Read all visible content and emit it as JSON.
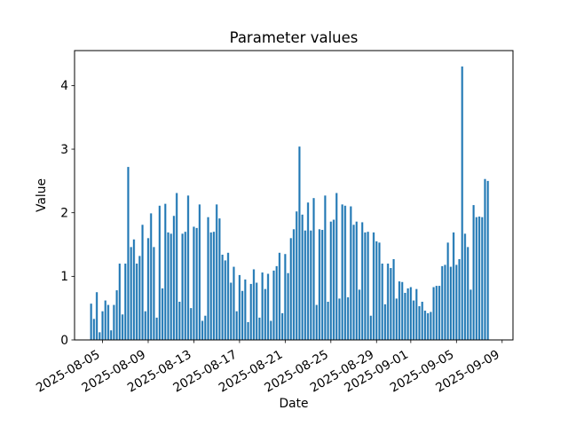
{
  "chart_data": {
    "type": "bar",
    "title": "Parameter values",
    "xlabel": "Date",
    "ylabel": "Value",
    "bar_color": "#1f77b4",
    "axis_color": "#000000",
    "background_color": "#ffffff",
    "grid": false,
    "legend": null,
    "start_date": "2025-08-04T00:00",
    "step_hours": 6,
    "start_day_offset": -1.0,
    "step_days": 0.25,
    "ylim": [
      0,
      4.55
    ],
    "xlim_days": [
      -2.45,
      35.95
    ],
    "yticks": [
      "0",
      "1",
      "2",
      "3",
      "4"
    ],
    "xticks": [
      {
        "label": "2025-08-05",
        "day": 0
      },
      {
        "label": "2025-08-09",
        "day": 4
      },
      {
        "label": "2025-08-13",
        "day": 8
      },
      {
        "label": "2025-08-17",
        "day": 12
      },
      {
        "label": "2025-08-21",
        "day": 16
      },
      {
        "label": "2025-08-25",
        "day": 20
      },
      {
        "label": "2025-08-29",
        "day": 24
      },
      {
        "label": "2025-09-01",
        "day": 27
      },
      {
        "label": "2025-09-05",
        "day": 31
      },
      {
        "label": "2025-09-09",
        "day": 35
      }
    ],
    "values": [
      0.57,
      0.33,
      0.75,
      0.12,
      0.45,
      0.62,
      0.55,
      0.15,
      0.55,
      0.78,
      1.2,
      0.4,
      1.2,
      2.72,
      1.46,
      1.58,
      1.2,
      1.32,
      1.81,
      0.45,
      1.6,
      1.99,
      1.46,
      0.35,
      2.11,
      0.81,
      2.14,
      1.69,
      1.67,
      1.95,
      2.31,
      0.6,
      1.67,
      1.7,
      2.27,
      0.5,
      1.78,
      1.76,
      2.13,
      0.3,
      0.38,
      1.93,
      1.69,
      1.7,
      2.13,
      1.91,
      1.34,
      1.25,
      1.37,
      0.9,
      1.15,
      0.45,
      1.02,
      0.77,
      0.95,
      0.28,
      0.88,
      1.11,
      0.9,
      0.35,
      1.06,
      0.8,
      1.04,
      0.3,
      1.09,
      1.16,
      1.37,
      0.42,
      1.35,
      1.05,
      1.6,
      1.74,
      2.02,
      3.04,
      1.97,
      1.72,
      2.16,
      1.72,
      2.23,
      0.55,
      1.74,
      1.73,
      2.27,
      0.6,
      1.86,
      1.89,
      2.31,
      0.65,
      2.13,
      2.11,
      0.67,
      2.1,
      1.81,
      1.86,
      0.79,
      1.85,
      1.69,
      1.7,
      0.38,
      1.69,
      1.55,
      1.53,
      1.2,
      0.56,
      1.2,
      1.13,
      1.27,
      0.65,
      0.92,
      0.91,
      0.74,
      0.81,
      0.83,
      0.62,
      0.8,
      0.53,
      0.6,
      0.46,
      0.42,
      0.44,
      0.83,
      0.85,
      0.85,
      1.16,
      1.18,
      1.53,
      1.15,
      1.69,
      1.18,
      1.27,
      4.3,
      1.67,
      1.46,
      0.79,
      2.12,
      1.93,
      1.94,
      1.93,
      2.53,
      2.5
    ]
  }
}
